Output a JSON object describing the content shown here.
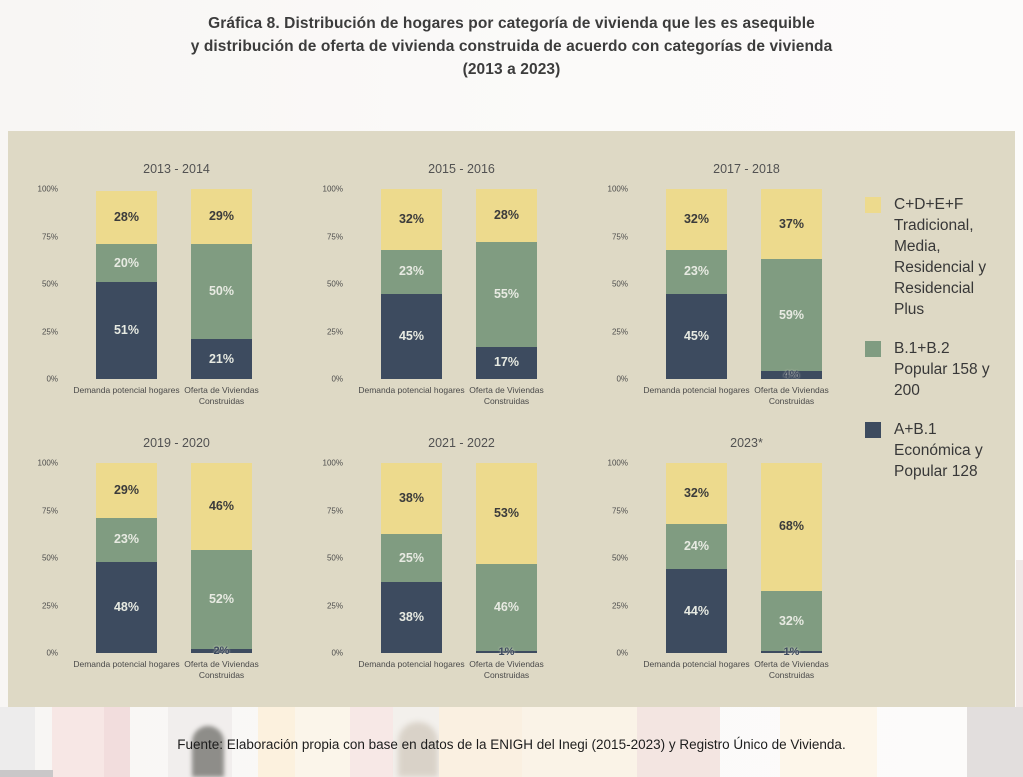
{
  "document": {
    "title_lines": [
      "Gráfica 8. Distribución de hogares por categoría de vivienda que les es asequible",
      "y distribución de oferta de vivienda construida de acuerdo con categorías de vivienda",
      "(2013 a 2023)"
    ],
    "source": "Fuente: Elaboración propia con base en datos de la ENIGH del Inegi (2015-2023) y Registro Único de Vivienda."
  },
  "colors": {
    "panel_bg": "#ded9c5",
    "navy": "#3d4b5f",
    "green": "#809c81",
    "yellow": "#edda8d"
  },
  "legend": [
    {
      "label": "C+D+E+F Tradicional, Media, Residencial y Residencial Plus",
      "color": "#edda8d"
    },
    {
      "label": "B.1+B.2 Popular 158 y 200",
      "color": "#809c81"
    },
    {
      "label": "A+B.1 Económica y Popular 128",
      "color": "#3d4b5f"
    }
  ],
  "chart_data": {
    "type": "bar",
    "stacked": true,
    "unit": "percent",
    "ylim": [
      0,
      100
    ],
    "grid": false,
    "legend_position": "right",
    "y_ticks": [
      "100%",
      "75%",
      "50%",
      "25%",
      "0%"
    ],
    "categories": [
      "Demanda potencial hogares",
      "Oferta de Viviendas Construidas"
    ],
    "segment_order_bottom_to_top": [
      "A+B.1 Económica y Popular 128",
      "B.1+B.2 Popular 158 y 200",
      "C+D+E+F Tradicional, Media, Residencial y Residencial Plus"
    ],
    "segment_colors_bottom_to_top": [
      "#3d4b5f",
      "#809c81",
      "#edda8d"
    ],
    "panels": [
      {
        "title": "2013 - 2014",
        "bars": [
          [
            51,
            20,
            28
          ],
          [
            21,
            50,
            29
          ]
        ]
      },
      {
        "title": "2015 - 2016",
        "bars": [
          [
            45,
            23,
            32
          ],
          [
            17,
            55,
            28
          ]
        ]
      },
      {
        "title": "2017 - 2018",
        "bars": [
          [
            45,
            23,
            32
          ],
          [
            4,
            59,
            37
          ]
        ]
      },
      {
        "title": "2019 - 2020",
        "bars": [
          [
            48,
            23,
            29
          ],
          [
            2,
            52,
            46
          ]
        ]
      },
      {
        "title": "2021 - 2022",
        "bars": [
          [
            38,
            25,
            38
          ],
          [
            1,
            46,
            53
          ]
        ]
      },
      {
        "title": "2023*",
        "bars": [
          [
            44,
            24,
            32
          ],
          [
            1,
            32,
            68
          ]
        ]
      }
    ]
  }
}
